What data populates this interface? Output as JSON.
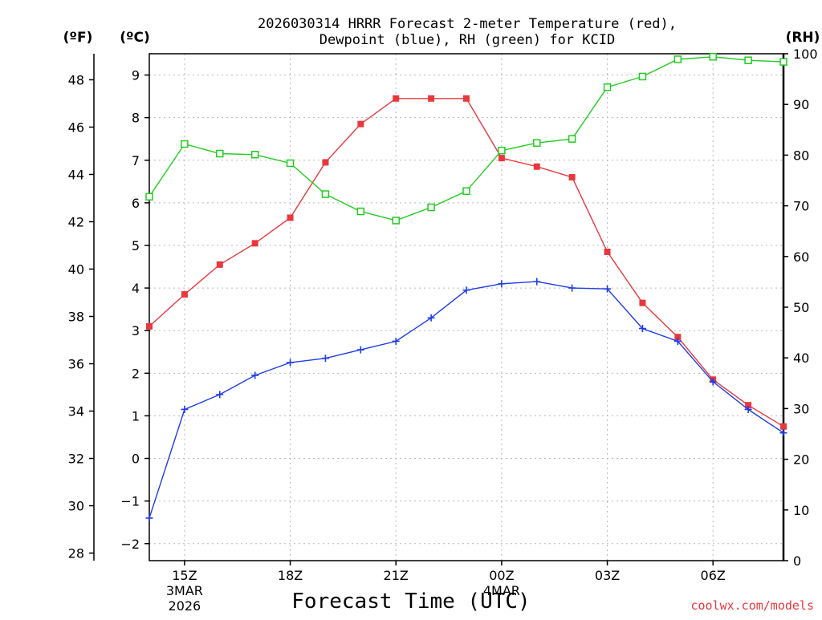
{
  "chart_data": {
    "type": "line",
    "title_lines": [
      "2026030314 HRRR Forecast 2-meter Temperature (red),",
      "Dewpoint (blue), RH (green) for KCID"
    ],
    "xlabel": "Forecast Time (UTC)",
    "credit": "coolwx.com/models",
    "unit_labels": {
      "fahrenheit": "(ºF)",
      "celsius": "(ºC)",
      "rh": "(RH)"
    },
    "x_hours": [
      14,
      15,
      16,
      17,
      18,
      19,
      20,
      21,
      22,
      23,
      24,
      25,
      26,
      27,
      28,
      29,
      30,
      31,
      32
    ],
    "x_range": [
      14,
      32
    ],
    "x_ticks": [
      {
        "hour": 15,
        "label": "15Z",
        "sub": [
          "3MAR",
          "2026"
        ]
      },
      {
        "hour": 18,
        "label": "18Z",
        "sub": []
      },
      {
        "hour": 21,
        "label": "21Z",
        "sub": []
      },
      {
        "hour": 24,
        "label": "00Z",
        "sub": [
          "4MAR"
        ]
      },
      {
        "hour": 27,
        "label": "03Z",
        "sub": []
      },
      {
        "hour": 30,
        "label": "06Z",
        "sub": []
      }
    ],
    "celsius_axis": {
      "range": [
        -2.4,
        9.5
      ],
      "ticks": [
        -2,
        -1,
        0,
        1,
        2,
        3,
        4,
        5,
        6,
        7,
        8,
        9
      ]
    },
    "fahrenheit_axis": {
      "ticks": [
        28,
        30,
        32,
        34,
        36,
        38,
        40,
        42,
        44,
        46,
        48
      ]
    },
    "rh_axis": {
      "range": [
        0,
        100
      ],
      "ticks": [
        0,
        10,
        20,
        30,
        40,
        50,
        60,
        70,
        80,
        90,
        100
      ]
    },
    "series": [
      {
        "name": "Temperature",
        "units": "C",
        "color": "#e8383d",
        "marker": "filled-square",
        "values": [
          3.1,
          3.85,
          4.55,
          5.05,
          5.65,
          6.95,
          7.85,
          8.45,
          8.45,
          8.45,
          7.05,
          6.85,
          6.6,
          4.85,
          3.65,
          2.85,
          1.85,
          1.25,
          0.75
        ]
      },
      {
        "name": "Dewpoint",
        "units": "C",
        "color": "#1f3ce8",
        "marker": "plus",
        "values": [
          -1.4,
          1.15,
          1.5,
          1.95,
          2.25,
          2.35,
          2.55,
          2.75,
          3.3,
          3.95,
          4.1,
          4.15,
          4.0,
          3.98,
          3.05,
          2.75,
          1.8,
          1.15,
          0.6
        ]
      },
      {
        "name": "RH",
        "units": "%",
        "color": "#22cc22",
        "marker": "open-square",
        "values": [
          71.8,
          82.2,
          80.3,
          80.1,
          78.4,
          72.3,
          68.9,
          67.1,
          69.7,
          72.9,
          80.9,
          82.4,
          83.2,
          93.4,
          95.5,
          98.9,
          99.4,
          98.7,
          98.4
        ]
      }
    ]
  }
}
